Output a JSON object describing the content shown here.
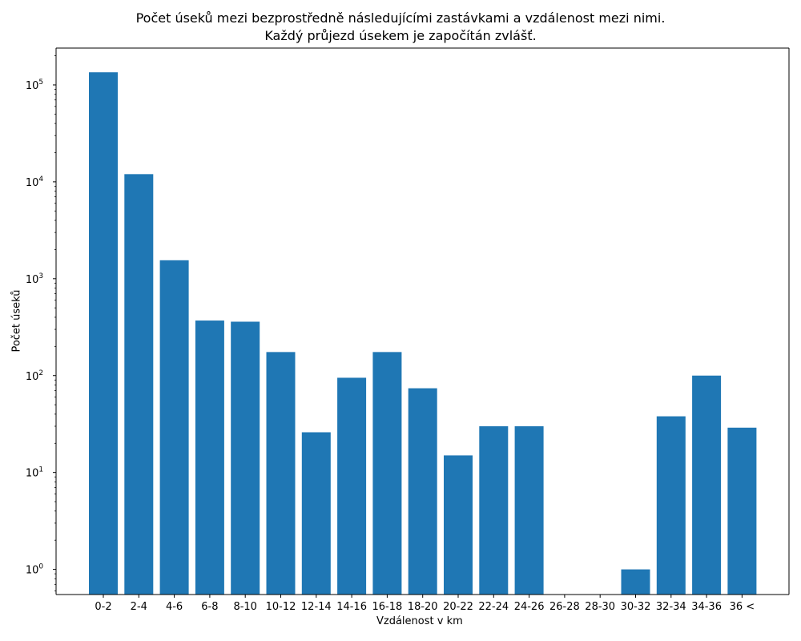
{
  "chart_data": {
    "type": "bar",
    "title": "Počet úseků mezi bezprostředně následujícími zastávkami a vzdálenost mezi nimi.",
    "subtitle": "Každý průjezd úsekem je započítán zvlášť.",
    "xlabel": "Vzdálenost v km",
    "ylabel": "Počet úseků",
    "yscale": "log",
    "ylim": [
      0.55,
      240000
    ],
    "yticks": [
      1,
      10,
      100,
      1000,
      10000,
      100000
    ],
    "ytick_labels": [
      {
        "base": "10",
        "exp": "0"
      },
      {
        "base": "10",
        "exp": "1"
      },
      {
        "base": "10",
        "exp": "2"
      },
      {
        "base": "10",
        "exp": "3"
      },
      {
        "base": "10",
        "exp": "4"
      },
      {
        "base": "10",
        "exp": "5"
      }
    ],
    "categories": [
      "0-2",
      "2-4",
      "4-6",
      "6-8",
      "8-10",
      "10-12",
      "12-14",
      "14-16",
      "16-18",
      "18-20",
      "20-22",
      "22-24",
      "24-26",
      "26-28",
      "28-30",
      "30-32",
      "32-34",
      "34-36",
      "36 <"
    ],
    "values": [
      135000,
      12000,
      1550,
      370,
      360,
      175,
      26,
      95,
      175,
      74,
      15,
      30,
      30,
      0,
      0,
      1,
      38,
      100,
      29
    ],
    "bar_color": "#1f77b4",
    "grid": false,
    "legend": "none"
  }
}
